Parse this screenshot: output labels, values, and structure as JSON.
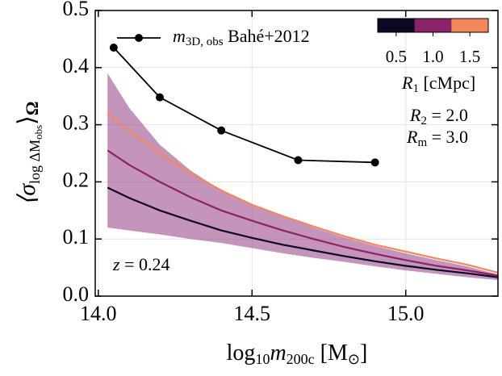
{
  "chart_data": {
    "type": "line",
    "xlabel_parts": [
      "log",
      "10",
      "m",
      "200c",
      " [M",
      "⊙",
      "]"
    ],
    "ylabel_parts": [
      "⟨σ",
      "log ΔM",
      "obs",
      "⟩",
      "Ω"
    ],
    "xlim": [
      13.99,
      15.3
    ],
    "ylim": [
      0,
      0.5
    ],
    "xticks": [
      {
        "value": 14,
        "label": "14.0"
      },
      14.5,
      {
        "value": 15,
        "label": "15.0"
      }
    ],
    "yticks": [
      {
        "value": 0,
        "label": "0.0"
      },
      0.1,
      0.2,
      0.3,
      0.4,
      0.5
    ],
    "grid": true,
    "band": {
      "color": "#a0528f",
      "x": [
        14.03,
        14.1,
        14.2,
        14.3,
        14.4,
        14.5,
        14.6,
        14.7,
        14.8,
        14.9,
        15.0,
        15.1,
        15.2,
        15.3
      ],
      "upper": [
        0.39,
        0.33,
        0.265,
        0.22,
        0.185,
        0.16,
        0.14,
        0.12,
        0.103,
        0.088,
        0.075,
        0.063,
        0.052,
        0.038
      ],
      "lower": [
        0.12,
        0.115,
        0.108,
        0.1,
        0.093,
        0.084,
        0.075,
        0.067,
        0.06,
        0.052,
        0.045,
        0.039,
        0.033,
        0.028
      ]
    },
    "series": [
      {
        "label_parts": [
          "m",
          "3D, obs",
          " Bahé+2012"
        ],
        "color": "#000000",
        "marker": "circle",
        "x": [
          14.05,
          14.2,
          14.4,
          14.65,
          14.9
        ],
        "values": [
          0.435,
          0.348,
          0.29,
          0.238,
          0.234
        ]
      },
      {
        "color": "#0b0924",
        "x": [
          14.03,
          14.1,
          14.2,
          14.3,
          14.4,
          14.5,
          14.6,
          14.7,
          14.8,
          14.9,
          15.0,
          15.1,
          15.2,
          15.3
        ],
        "values": [
          0.19,
          0.172,
          0.15,
          0.132,
          0.115,
          0.102,
          0.09,
          0.08,
          0.07,
          0.061,
          0.053,
          0.046,
          0.04,
          0.033
        ]
      },
      {
        "color": "#8c2369",
        "x": [
          14.03,
          14.1,
          14.2,
          14.3,
          14.4,
          14.5,
          14.6,
          14.7,
          14.8,
          14.9,
          15.0,
          15.1,
          15.2,
          15.3
        ],
        "values": [
          0.255,
          0.23,
          0.2,
          0.173,
          0.15,
          0.132,
          0.115,
          0.1,
          0.086,
          0.074,
          0.063,
          0.053,
          0.045,
          0.036
        ]
      },
      {
        "color": "#f3875c",
        "x": [
          14.03,
          14.1,
          14.2,
          14.3,
          14.4,
          14.5,
          14.6,
          14.7,
          14.8,
          14.9,
          15.0,
          15.1,
          15.2,
          15.3
        ],
        "values": [
          0.32,
          0.29,
          0.25,
          0.215,
          0.185,
          0.16,
          0.14,
          0.122,
          0.105,
          0.09,
          0.078,
          0.066,
          0.055,
          0.041
        ]
      }
    ],
    "colorbar": {
      "colors": [
        "#0b0924",
        "#8c2369",
        "#f3875c"
      ],
      "clim": [
        0.25,
        1.75
      ],
      "ticks": [
        0.5,
        {
          "value": 1.0,
          "label": "1.0"
        },
        1.5
      ],
      "label_parts": [
        "R",
        "1",
        " [cMpc]"
      ]
    },
    "annotations": [
      {
        "parts": [
          "R",
          "2",
          " = 2.0"
        ]
      },
      {
        "parts": [
          "R",
          "m",
          " = 3.0"
        ]
      },
      {
        "parts": [
          "z",
          " = 0.24"
        ]
      }
    ]
  }
}
